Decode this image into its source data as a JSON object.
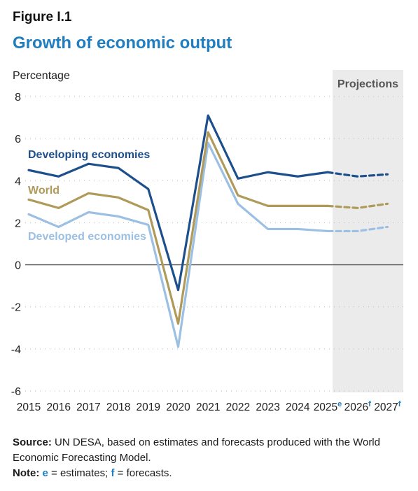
{
  "figure_label": "Figure I.1",
  "title": "Growth of economic output",
  "colors": {
    "title": "#1f7dc0",
    "developing": "#1d4f8c",
    "world": "#b09a5a",
    "developed": "#9cc0e3",
    "projection_band": "#ebebeb",
    "zero_line": "#555555",
    "grid": "#bbbbbb"
  },
  "chart_data": {
    "type": "line",
    "ylabel": "Percentage",
    "ylim": [
      -6,
      8
    ],
    "yticks": [
      -6,
      -4,
      -2,
      0,
      2,
      4,
      6,
      8
    ],
    "x": [
      "2015",
      "2016",
      "2017",
      "2018",
      "2019",
      "2020",
      "2021",
      "2022",
      "2023",
      "2024",
      "2025",
      "2026",
      "2027"
    ],
    "x_superscripts": [
      "",
      "",
      "",
      "",
      "",
      "",
      "",
      "",
      "",
      "",
      "e",
      "f",
      "f"
    ],
    "grid": "horizontal dotted",
    "projection_region": {
      "label": "Projections",
      "from": "2025",
      "to": "2027"
    },
    "projected_from_index": 10,
    "series": [
      {
        "name": "Developing economies",
        "color_key": "developing",
        "values": [
          4.5,
          4.2,
          4.8,
          4.6,
          3.6,
          -1.2,
          7.1,
          4.1,
          4.4,
          4.2,
          4.4,
          4.2,
          4.3
        ]
      },
      {
        "name": "World",
        "color_key": "world",
        "values": [
          3.1,
          2.7,
          3.4,
          3.2,
          2.6,
          -2.8,
          6.3,
          3.3,
          2.8,
          2.8,
          2.8,
          2.7,
          2.9
        ]
      },
      {
        "name": "Developed economies",
        "color_key": "developed",
        "values": [
          2.4,
          1.8,
          2.5,
          2.3,
          1.9,
          -3.9,
          5.8,
          2.9,
          1.7,
          1.7,
          1.6,
          1.6,
          1.8
        ]
      }
    ]
  },
  "source": {
    "label": "Source:",
    "text": " UN DESA, based on estimates and forecasts produced with the World Economic Forecasting Model."
  },
  "note": {
    "label": "Note:",
    "e": "e",
    "e_text": " = estimates; ",
    "f": "f",
    "f_text": " = forecasts."
  }
}
